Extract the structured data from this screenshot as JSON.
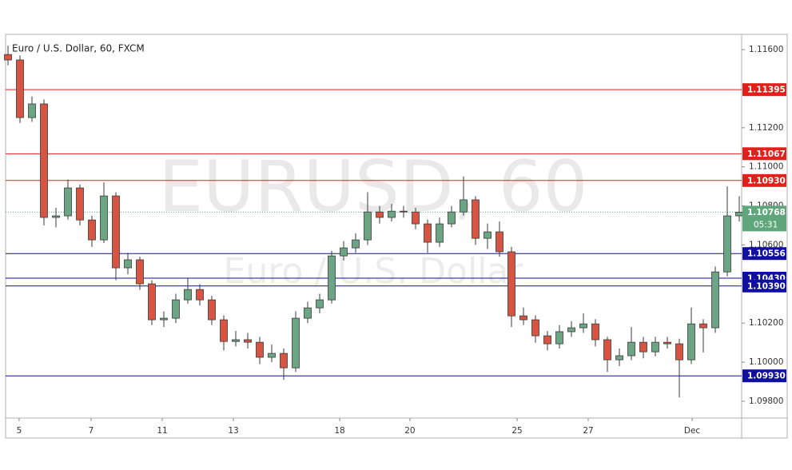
{
  "chart_data": {
    "type": "candlestick",
    "title": "Euro / U.S. Dollar, 60, FXCM",
    "watermark": "EURUSD, 60",
    "watermark_subtitle": "Euro / U.S. Dollar",
    "up_color": "#6ba583",
    "down_color": "#d75442",
    "wick_color": "#3a3a3a",
    "open": [
      1.11575,
      1.11547,
      1.11252,
      1.11322,
      1.10741,
      1.10749,
      1.10892,
      1.10728,
      1.10626,
      1.10851,
      1.10483,
      1.10524,
      1.10401,
      1.10217,
      1.10225,
      1.10319,
      1.10372,
      1.10319,
      1.10217,
      1.10106,
      1.10115,
      1.10102,
      1.10025,
      1.10045,
      1.09971,
      1.10225,
      1.10278,
      1.10319,
      1.10544,
      1.10585,
      1.10626,
      1.10769,
      1.10741,
      1.10773,
      1.10769,
      1.10708,
      1.10614,
      1.10708,
      1.10769,
      1.10831,
      1.10634,
      1.10667,
      1.10565,
      1.10237,
      1.10217,
      1.10135,
      1.10094,
      1.10156,
      1.10176,
      1.10196,
      1.10115,
      1.10012,
      1.10033,
      1.10102,
      1.10053,
      1.10102,
      1.10094,
      1.10012,
      1.10196,
      1.10176,
      1.10462,
      1.10749
    ],
    "high": [
      1.1162,
      1.1157,
      1.1136,
      1.11345,
      1.1079,
      1.10935,
      1.1091,
      1.1075,
      1.1092,
      1.1087,
      1.1056,
      1.1054,
      1.1042,
      1.1026,
      1.1035,
      1.1043,
      1.104,
      1.1034,
      1.1024,
      1.1016,
      1.1015,
      1.1013,
      1.1009,
      1.1007,
      1.1026,
      1.1031,
      1.1035,
      1.1057,
      1.1062,
      1.1066,
      1.1087,
      1.108,
      1.1081,
      1.108,
      1.1079,
      1.1073,
      1.1074,
      1.108,
      1.1095,
      1.1085,
      1.1071,
      1.1072,
      1.1059,
      1.1028,
      1.1024,
      1.1016,
      1.1019,
      1.1021,
      1.1025,
      1.1022,
      1.1013,
      1.1007,
      1.1018,
      1.1013,
      1.1013,
      1.1013,
      1.1012,
      1.1028,
      1.1022,
      1.1049,
      1.109,
      1.1085
    ],
    "low": [
      1.1152,
      1.11225,
      1.1123,
      1.107,
      1.1069,
      1.1073,
      1.107,
      1.1059,
      1.1061,
      1.1042,
      1.1045,
      1.1037,
      1.1019,
      1.1018,
      1.102,
      1.103,
      1.1029,
      1.1019,
      1.1006,
      1.1008,
      1.1007,
      1.0999,
      1.1,
      1.0991,
      1.0995,
      1.102,
      1.1025,
      1.103,
      1.1052,
      1.1056,
      1.106,
      1.1071,
      1.1072,
      1.1074,
      1.1068,
      1.1056,
      1.1059,
      1.1069,
      1.1075,
      1.106,
      1.1058,
      1.1054,
      1.1018,
      1.1019,
      1.101,
      1.1006,
      1.1007,
      1.1013,
      1.1015,
      1.1008,
      1.0995,
      1.0998,
      1.1001,
      1.1002,
      1.1003,
      1.1007,
      1.0982,
      1.0999,
      1.1005,
      1.1015,
      1.1044,
      1.1072
    ],
    "close": [
      1.11547,
      1.11252,
      1.11322,
      1.10741,
      1.10749,
      1.10892,
      1.10728,
      1.10626,
      1.10851,
      1.10483,
      1.10524,
      1.10401,
      1.10217,
      1.10225,
      1.10319,
      1.10372,
      1.10319,
      1.10217,
      1.10106,
      1.10115,
      1.10102,
      1.10025,
      1.10045,
      1.09971,
      1.10225,
      1.10278,
      1.10319,
      1.10544,
      1.10585,
      1.10626,
      1.10769,
      1.10741,
      1.10773,
      1.10769,
      1.10708,
      1.10614,
      1.10708,
      1.10769,
      1.10831,
      1.10634,
      1.10667,
      1.10565,
      1.10237,
      1.10217,
      1.10135,
      1.10094,
      1.10156,
      1.10176,
      1.10196,
      1.10115,
      1.10012,
      1.10033,
      1.10102,
      1.10053,
      1.10102,
      1.10094,
      1.10012,
      1.10196,
      1.10176,
      1.10462,
      1.10749,
      1.10768
    ],
    "xlim": [
      -0.2,
      61.2
    ],
    "xticks": [
      {
        "value": 0.93,
        "label": "5"
      },
      {
        "value": 6.93,
        "label": "7"
      },
      {
        "value": 12.87,
        "label": "11"
      },
      {
        "value": 18.8,
        "label": "13"
      },
      {
        "value": 27.67,
        "label": "18"
      },
      {
        "value": 33.53,
        "label": "20"
      },
      {
        "value": 42.47,
        "label": "25"
      },
      {
        "value": 48.4,
        "label": "27"
      },
      {
        "value": 57.07,
        "label": "Dec"
      }
    ],
    "ylim": [
      1.09714,
      1.11678
    ],
    "yticks": [
      {
        "value": 1.116,
        "label": "1.11600"
      },
      {
        "value": 1.112,
        "label": "1.11200"
      },
      {
        "value": 1.11,
        "label": "1.11000"
      },
      {
        "value": 1.108,
        "label": "1.10800"
      },
      {
        "value": 1.106,
        "label": "1.10600"
      },
      {
        "value": 1.102,
        "label": "1.10200"
      },
      {
        "value": 1.1,
        "label": "1.10000"
      },
      {
        "value": 1.098,
        "label": "1.09800"
      }
    ],
    "levels": [
      {
        "value": 1.11395,
        "label": "1.11395",
        "color": "#e0201b"
      },
      {
        "value": 1.11067,
        "label": "1.11067",
        "color": "#e0201b"
      },
      {
        "value": 1.1093,
        "label": "1.10930",
        "color": "#e0201b"
      },
      {
        "value": 1.10556,
        "label": "1.10556",
        "color": "#1010a0"
      },
      {
        "value": 1.1043,
        "label": "1.10430",
        "color": "#1010a0"
      },
      {
        "value": 1.1039,
        "label": "1.10390",
        "color": "#1010a0"
      },
      {
        "value": 1.0993,
        "label": "1.09930",
        "color": "#1010a0"
      }
    ],
    "price_color": "#5fa67c",
    "countdown": "05:31"
  }
}
